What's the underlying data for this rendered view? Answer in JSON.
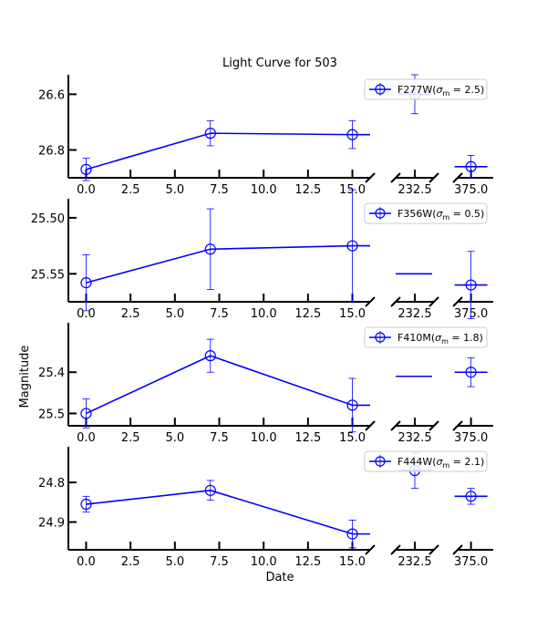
{
  "chart_data": {
    "type": "line",
    "title": "Light Curve for 503",
    "xlabel": "Date",
    "ylabel": "Magnitude",
    "y_inverted": true,
    "broken_x_axis": true,
    "segments": [
      {
        "xlim": [
          -1,
          16
        ],
        "ticks": [
          0.0,
          2.5,
          5.0,
          7.5,
          10.0,
          12.5,
          15.0
        ],
        "tick_labels": [
          "0.0",
          "2.5",
          "5.0",
          "7.5",
          "10.0",
          "12.5",
          "15.0"
        ]
      },
      {
        "xlim": [
          222.5,
          242.5
        ],
        "ticks": [
          232.5
        ],
        "tick_labels": [
          "232.5"
        ]
      },
      {
        "xlim": [
          369.0,
          385.0
        ],
        "ticks": [
          375.0
        ],
        "tick_labels": [
          "375.0"
        ]
      }
    ],
    "color": "#0000ff",
    "legend_location": "upper right",
    "panels": [
      {
        "legend": "F277W(σ_m = 2.5)",
        "legend_parts": {
          "band": "F277W",
          "sigma": "2.5"
        },
        "ylim": [
          26.9,
          26.53
        ],
        "yticks": [
          26.6,
          26.8
        ],
        "ytick_labels": [
          "26.6",
          "26.8"
        ],
        "points": [
          {
            "x": 0.0,
            "y": 26.87,
            "err": 0.04
          },
          {
            "x": 7.0,
            "y": 26.74,
            "err": 0.045
          },
          {
            "x": 15.0,
            "y": 26.745,
            "err": 0.05
          },
          {
            "x": 232.5,
            "y": 26.6,
            "err": 0.07
          },
          {
            "x": 375.0,
            "y": 26.86,
            "err": 0.04
          }
        ]
      },
      {
        "legend": "F356W(σ_m = 0.5)",
        "legend_parts": {
          "band": "F356W",
          "sigma": "0.5"
        },
        "ylim": [
          25.575,
          25.483
        ],
        "yticks": [
          25.5,
          25.55
        ],
        "ytick_labels": [
          "25.50",
          "25.55"
        ],
        "points": [
          {
            "x": 0.0,
            "y": 25.558,
            "err": 0.025
          },
          {
            "x": 7.0,
            "y": 25.528,
            "err": 0.036
          },
          {
            "x": 15.0,
            "y": 25.525,
            "err": 0.05
          },
          {
            "x": 232.5,
            "y": 25.55,
            "err": 0.0
          },
          {
            "x": 375.0,
            "y": 25.56,
            "err": 0.03
          }
        ]
      },
      {
        "legend": "F410M(σ_m = 1.8)",
        "legend_parts": {
          "band": "F410M",
          "sigma": "1.8"
        },
        "ylim": [
          25.53,
          25.28
        ],
        "yticks": [
          25.4,
          25.5
        ],
        "ytick_labels": [
          "25.4",
          "25.5"
        ],
        "points": [
          {
            "x": 0.0,
            "y": 25.5,
            "err": 0.035
          },
          {
            "x": 7.0,
            "y": 25.36,
            "err": 0.04
          },
          {
            "x": 15.0,
            "y": 25.48,
            "err": 0.065
          },
          {
            "x": 232.5,
            "y": 25.41,
            "err": 0.0
          },
          {
            "x": 375.0,
            "y": 25.4,
            "err": 0.035
          }
        ]
      },
      {
        "legend": "F444W(σ_m = 2.1)",
        "legend_parts": {
          "band": "F444W",
          "sigma": "2.1"
        },
        "ylim": [
          24.97,
          24.71
        ],
        "yticks": [
          24.8,
          24.9
        ],
        "ytick_labels": [
          "24.8",
          "24.9"
        ],
        "points": [
          {
            "x": 0.0,
            "y": 24.855,
            "err": 0.02
          },
          {
            "x": 7.0,
            "y": 24.82,
            "err": 0.025
          },
          {
            "x": 15.0,
            "y": 24.93,
            "err": 0.035
          },
          {
            "x": 232.5,
            "y": 24.77,
            "err": 0.045
          },
          {
            "x": 375.0,
            "y": 24.835,
            "err": 0.02
          }
        ]
      }
    ]
  }
}
